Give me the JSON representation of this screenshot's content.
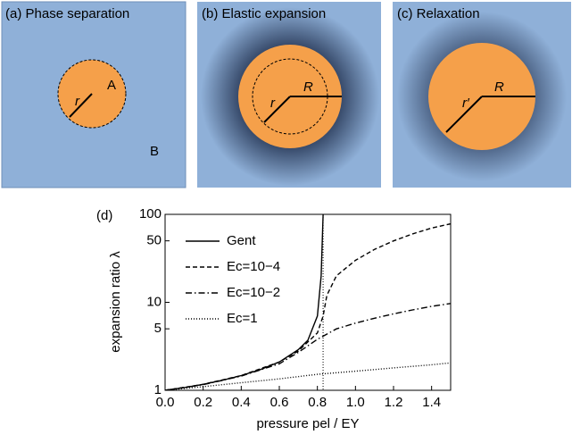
{
  "panels": [
    {
      "title": "(a) Phase separation",
      "labels": [
        "A",
        "B",
        "r"
      ]
    },
    {
      "title": "(b) Elastic expansion",
      "labels": [
        "r",
        "R"
      ]
    },
    {
      "title": "(c) Relaxation",
      "labels": [
        "r′",
        "R"
      ]
    }
  ],
  "chart_data": {
    "type": "line",
    "panel_label": "(d)",
    "x_label": "pressure  pel / EY",
    "y_label": "expansion ratio  λ",
    "xlim": [
      0,
      1.5
    ],
    "ylim": [
      1,
      100
    ],
    "log_y": true,
    "xticks": [
      {
        "value": 0,
        "label": "0.0"
      },
      0.2,
      0.4,
      0.6,
      0.8,
      {
        "value": 1,
        "label": "1.0"
      },
      1.2,
      1.4
    ],
    "yticks": [
      1,
      5,
      10,
      50,
      100
    ],
    "vline": 0.83,
    "legend": "upper left",
    "series": [
      {
        "name": "Gent",
        "color": "#000000",
        "style": "solid",
        "x": [
          0,
          0.1,
          0.2,
          0.3,
          0.4,
          0.5,
          0.6,
          0.7,
          0.75,
          0.8,
          0.82,
          0.83
        ],
        "values": [
          1,
          1.07,
          1.17,
          1.3,
          1.47,
          1.72,
          2.1,
          2.9,
          3.7,
          7,
          20,
          100
        ]
      },
      {
        "name": "Ec=10−4",
        "color": "#000000",
        "style": "dashed",
        "x": [
          0,
          0.2,
          0.4,
          0.6,
          0.7,
          0.8,
          0.83,
          0.85,
          0.9,
          1,
          1.1,
          1.2,
          1.3,
          1.4,
          1.5
        ],
        "values": [
          1,
          1.17,
          1.47,
          2.1,
          2.8,
          4.5,
          7,
          12,
          20,
          30,
          40,
          50,
          60,
          70,
          78
        ]
      },
      {
        "name": "Ec=10−2",
        "color": "#000000",
        "style": "dashdot",
        "x": [
          0,
          0.2,
          0.4,
          0.6,
          0.7,
          0.8,
          0.9,
          1,
          1.1,
          1.2,
          1.3,
          1.4,
          1.5
        ],
        "values": [
          1,
          1.16,
          1.45,
          2.0,
          2.7,
          3.8,
          5,
          5.8,
          6.6,
          7.4,
          8.2,
          9,
          9.7
        ]
      },
      {
        "name": "Ec=1",
        "color": "#000000",
        "style": "dotted",
        "x": [
          0,
          0.2,
          0.4,
          0.6,
          0.8,
          1,
          1.2,
          1.4,
          1.5
        ],
        "values": [
          1,
          1.1,
          1.22,
          1.35,
          1.52,
          1.65,
          1.8,
          1.95,
          2.05
        ]
      }
    ]
  }
}
